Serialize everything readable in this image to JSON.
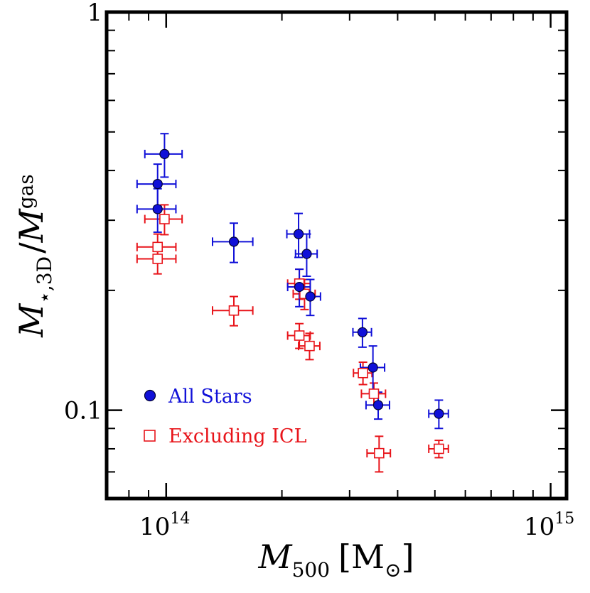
{
  "chart_data": {
    "type": "scatter",
    "x_scale": "log",
    "y_scale": "log",
    "xlim": [
      70000000000000,
      1100000000000000
    ],
    "ylim": [
      0.06,
      1.0
    ],
    "xlabel": {
      "main": "M",
      "sub": "500",
      "unit": "[M",
      "unit_sub": "⊙",
      "unit_close": "]"
    },
    "ylabel": {
      "main": "M",
      "sub": "⋆,3D",
      "sep": "/",
      "main2": "M",
      "sub2": "gas"
    },
    "x_major_ticks": [
      {
        "value": 100000000000000,
        "base": "10",
        "exp": "14"
      },
      {
        "value": 1000000000000000,
        "base": "10",
        "exp": "15"
      }
    ],
    "x_minor_ticks": [
      80000000000000,
      90000000000000,
      200000000000000,
      300000000000000,
      400000000000000,
      500000000000000,
      600000000000000,
      700000000000000,
      800000000000000,
      900000000000000
    ],
    "y_major_ticks": [
      {
        "value": 0.1,
        "label": "0.1"
      },
      {
        "value": 1.0,
        "label": "1"
      }
    ],
    "y_minor_ticks": [
      0.06,
      0.07,
      0.08,
      0.09,
      0.2,
      0.3,
      0.4,
      0.5,
      0.6,
      0.7,
      0.8,
      0.9
    ],
    "legend_position": "bottom-left",
    "series": [
      {
        "name": "All Stars",
        "marker": "circle-filled",
        "color": "#1010d8",
        "points": [
          {
            "x": 99000000000000,
            "y": 0.44,
            "xerr": 11000000000000,
            "yerr": 0.055
          },
          {
            "x": 95000000000000,
            "y": 0.37,
            "xerr": 11000000000000,
            "yerr": 0.045
          },
          {
            "x": 95000000000000,
            "y": 0.32,
            "xerr": 11000000000000,
            "yerr": 0.04
          },
          {
            "x": 150000000000000,
            "y": 0.265,
            "xerr": 18000000000000,
            "yerr": 0.03
          },
          {
            "x": 221000000000000,
            "y": 0.277,
            "xerr": 15000000000000,
            "yerr": 0.035
          },
          {
            "x": 232000000000000,
            "y": 0.247,
            "xerr": 15000000000000,
            "yerr": 0.03
          },
          {
            "x": 222000000000000,
            "y": 0.204,
            "xerr": 15000000000000,
            "yerr": 0.022
          },
          {
            "x": 237000000000000,
            "y": 0.193,
            "xerr": 15000000000000,
            "yerr": 0.02
          },
          {
            "x": 324000000000000,
            "y": 0.157,
            "xerr": 18000000000000,
            "yerr": 0.013
          },
          {
            "x": 345000000000000,
            "y": 0.128,
            "xerr": 25000000000000,
            "yerr": 0.017
          },
          {
            "x": 356000000000000,
            "y": 0.103,
            "xerr": 25000000000000,
            "yerr": 0.008
          },
          {
            "x": 512000000000000,
            "y": 0.098,
            "xerr": 30000000000000,
            "yerr": 0.008
          }
        ]
      },
      {
        "name": "Excluding ICL",
        "marker": "square-open",
        "color": "#e8141a",
        "points": [
          {
            "x": 99000000000000,
            "y": 0.302,
            "xerr": 11000000000000,
            "yerr": 0.026
          },
          {
            "x": 95000000000000,
            "y": 0.257,
            "xerr": 11000000000000,
            "yerr": 0.02
          },
          {
            "x": 95000000000000,
            "y": 0.24,
            "xerr": 11000000000000,
            "yerr": 0.02
          },
          {
            "x": 150000000000000,
            "y": 0.178,
            "xerr": 18000000000000,
            "yerr": 0.015
          },
          {
            "x": 222000000000000,
            "y": 0.208,
            "xerr": 15000000000000,
            "yerr": 0.018
          },
          {
            "x": 229000000000000,
            "y": 0.196,
            "xerr": 15000000000000,
            "yerr": 0.017
          },
          {
            "x": 222000000000000,
            "y": 0.154,
            "xerr": 15000000000000,
            "yerr": 0.011
          },
          {
            "x": 236000000000000,
            "y": 0.145,
            "xerr": 15000000000000,
            "yerr": 0.011
          },
          {
            "x": 325000000000000,
            "y": 0.124,
            "xerr": 18000000000000,
            "yerr": 0.008
          },
          {
            "x": 347000000000000,
            "y": 0.11,
            "xerr": 25000000000000,
            "yerr": 0.007
          },
          {
            "x": 358000000000000,
            "y": 0.078,
            "xerr": 25000000000000,
            "yerr": 0.008
          },
          {
            "x": 512000000000000,
            "y": 0.08,
            "xerr": 30000000000000,
            "yerr": 0.004
          }
        ]
      }
    ]
  }
}
